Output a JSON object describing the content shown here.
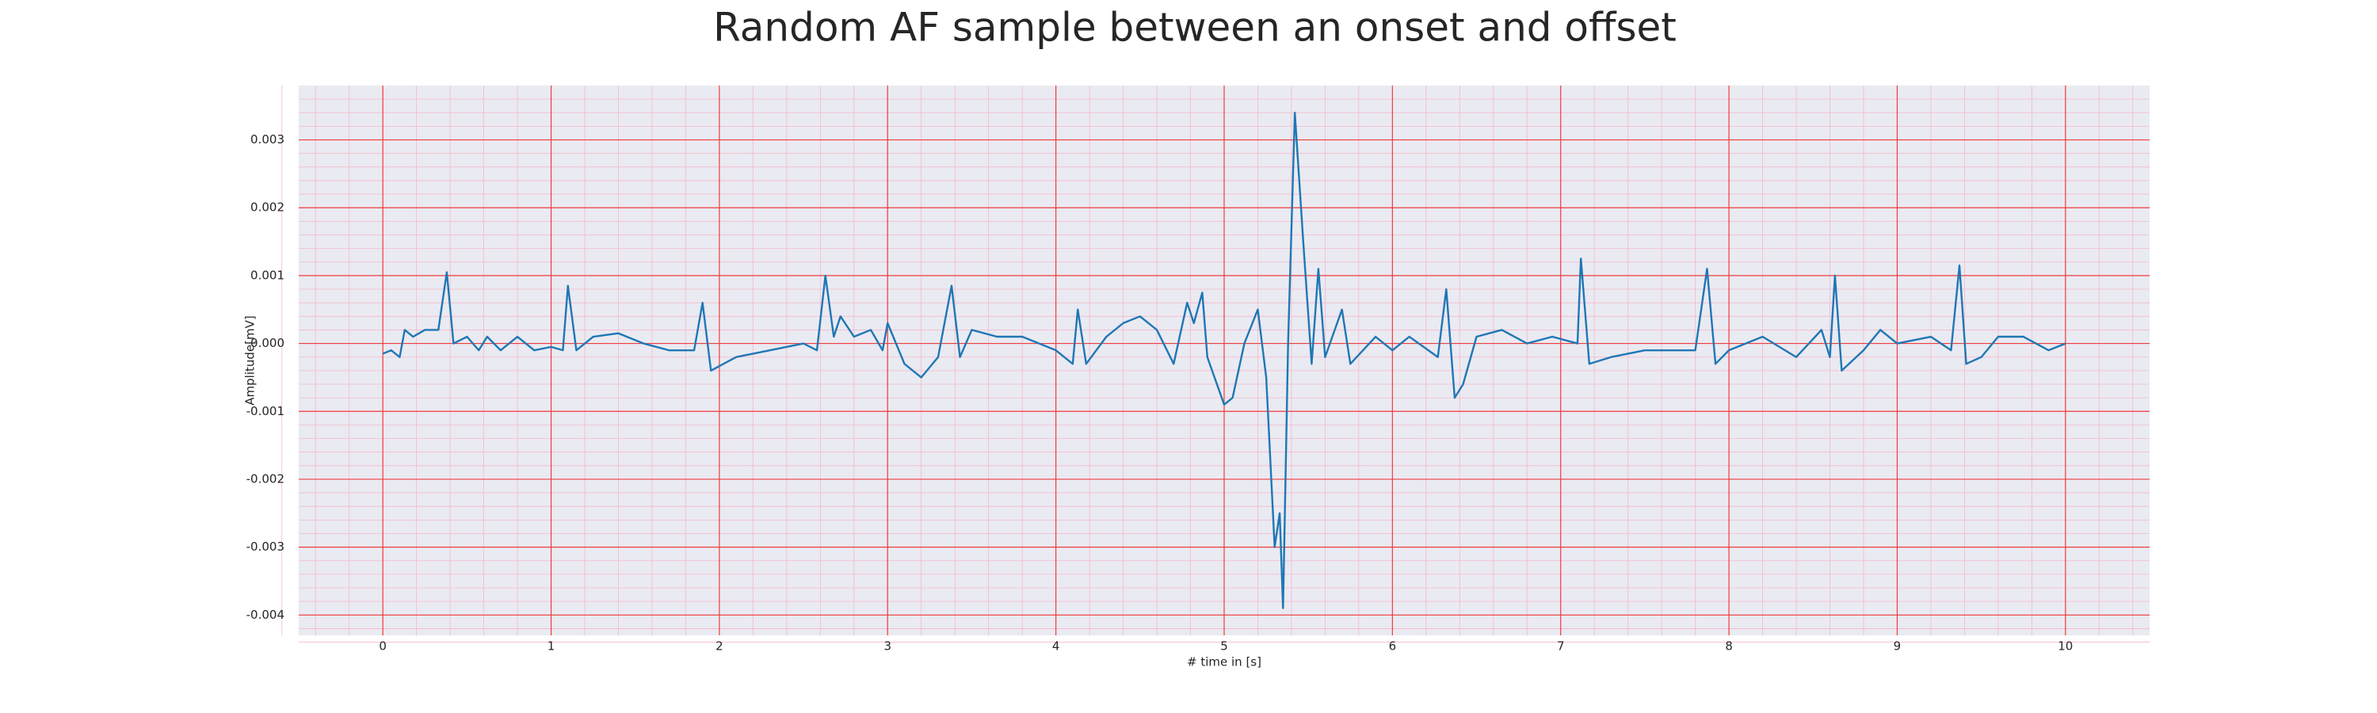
{
  "chart_data": {
    "type": "line",
    "title": "Random AF sample between an onset and offset",
    "xlabel": "# time in [s]",
    "ylabel": "Amplitude[mV]",
    "x": [
      0,
      0.05,
      0.1,
      0.13,
      0.18,
      0.25,
      0.33,
      0.38,
      0.42,
      0.5,
      0.57,
      0.62,
      0.7,
      0.8,
      0.9,
      1.0,
      1.07,
      1.1,
      1.15,
      1.25,
      1.4,
      1.55,
      1.7,
      1.85,
      1.9,
      1.95,
      2.1,
      2.3,
      2.5,
      2.58,
      2.63,
      2.68,
      2.72,
      2.8,
      2.9,
      2.97,
      3.0,
      3.1,
      3.2,
      3.3,
      3.38,
      3.43,
      3.5,
      3.65,
      3.8,
      4.0,
      4.1,
      4.13,
      4.18,
      4.3,
      4.4,
      4.5,
      4.6,
      4.7,
      4.78,
      4.82,
      4.87,
      4.9,
      5.0,
      5.05,
      5.12,
      5.2,
      5.25,
      5.3,
      5.33,
      5.35,
      5.38,
      5.42,
      5.47,
      5.52,
      5.56,
      5.6,
      5.7,
      5.75,
      5.9,
      6.0,
      6.1,
      6.27,
      6.32,
      6.37,
      6.42,
      6.5,
      6.65,
      6.8,
      6.95,
      7.1,
      7.12,
      7.17,
      7.3,
      7.5,
      7.8,
      7.87,
      7.92,
      8.0,
      8.2,
      8.4,
      8.55,
      8.6,
      8.63,
      8.67,
      8.8,
      8.9,
      9.0,
      9.2,
      9.32,
      9.37,
      9.41,
      9.5,
      9.6,
      9.75,
      9.9,
      10.0
    ],
    "series": [
      {
        "name": "AF sample",
        "color": "#1f77b4",
        "values": [
          -0.00015,
          -0.0001,
          -0.0002,
          0.0002,
          0.0001,
          0.0002,
          0.0002,
          0.00105,
          0,
          0.0001,
          -0.0001,
          0.0001,
          -0.0001,
          0.0001,
          -0.0001,
          -5e-05,
          -0.0001,
          0.00085,
          -0.0001,
          0.0001,
          0.00015,
          0,
          -0.0001,
          -0.0001,
          0.0006,
          -0.0004,
          -0.0002,
          -0.0001,
          0,
          -0.0001,
          0.001,
          0.0001,
          0.0004,
          0.0001,
          0.0002,
          -0.0001,
          0.0003,
          -0.0003,
          -0.0005,
          -0.0002,
          0.00085,
          -0.0002,
          0.0002,
          0.0001,
          0.0001,
          -0.0001,
          -0.0003,
          0.0005,
          -0.0003,
          0.0001,
          0.0003,
          0.0004,
          0.0002,
          -0.0003,
          0.0006,
          0.0003,
          0.00075,
          -0.0002,
          -0.0009,
          -0.0008,
          0,
          0.0005,
          -0.0005,
          -0.003,
          -0.0025,
          -0.0039,
          0,
          0.0034,
          0.0015,
          -0.0003,
          0.0011,
          -0.0002,
          0.0005,
          -0.0003,
          0.0001,
          -0.0001,
          0.0001,
          -0.0002,
          0.0008,
          -0.0008,
          -0.0006,
          0.0001,
          0.0002,
          0,
          0.0001,
          0,
          0.00125,
          -0.0003,
          -0.0002,
          -0.0001,
          -0.0001,
          0.0011,
          -0.0003,
          -0.0001,
          0.0001,
          -0.0002,
          0.0002,
          -0.0002,
          0.001,
          -0.0004,
          -0.0001,
          0.0002,
          0,
          0.0001,
          -0.0001,
          0.00115,
          -0.0003,
          -0.0002,
          0.0001,
          0.0001,
          -0.0001,
          0
        ]
      }
    ],
    "xlim": [
      -0.5,
      10.5
    ],
    "ylim": [
      -0.0043,
      0.0038
    ],
    "xticks": [
      0,
      1,
      2,
      3,
      4,
      5,
      6,
      7,
      8,
      9,
      10
    ],
    "yticks": [
      -0.004,
      -0.003,
      -0.002,
      -0.001,
      {
        "value": 0,
        "label": "0.000"
      },
      0.001,
      0.002,
      0.003
    ],
    "grid": true,
    "minor_grid": true,
    "background": "#eaeaf2",
    "grid_color": "#f03c3c",
    "minor_grid_color": "#f5b8c8"
  }
}
